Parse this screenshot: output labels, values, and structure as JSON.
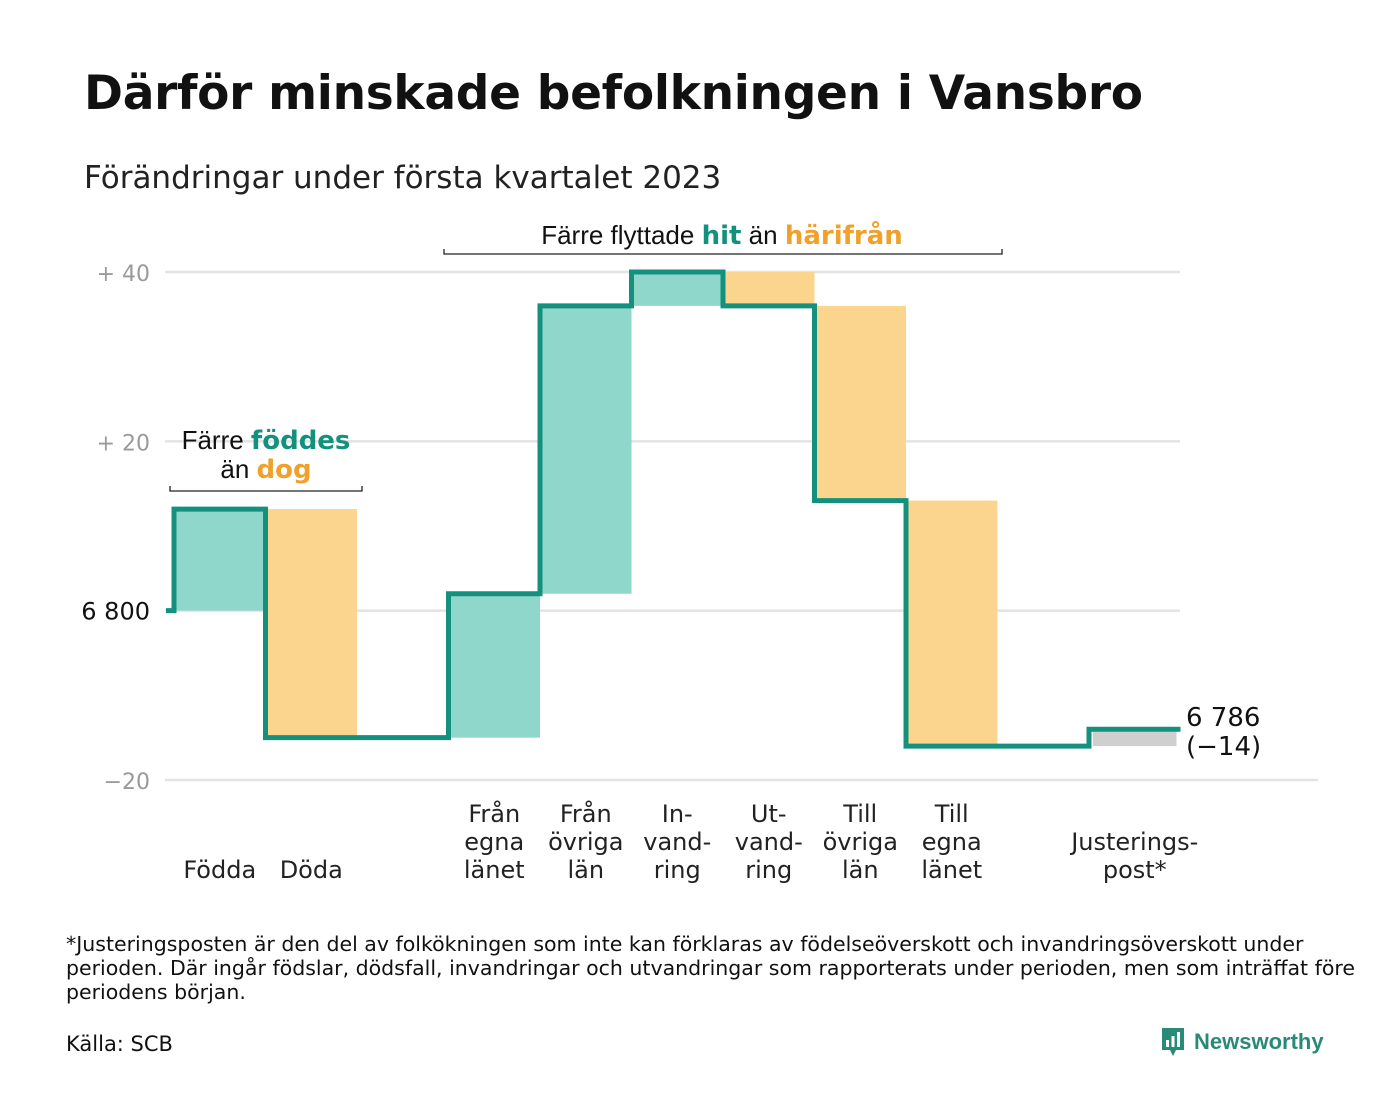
{
  "title": "Därför minskade befolkningen i Vansbro",
  "subtitle": "Förändringar under första kvartalet 2023",
  "footnote": "*Justeringsposten är den del av folkökningen som inte kan förklaras av födelseöverskott och invandringsöverskott under perioden. Där ingår födslar, dödsfall, invandringar och utvandringar som rapporterats under perioden, men som inträffat före periodens början.",
  "source": "Källa: SCB",
  "brand": "Newsworthy",
  "colors": {
    "inflow": "#8fd6cb",
    "outflow": "#fbd58d",
    "adjustment": "#cfcfcf",
    "line": "#13917e",
    "teal_text": "#13917e",
    "orange_text": "#f0a12b"
  },
  "chart_data": {
    "type": "waterfall",
    "start_value": 6800,
    "end_value": 6786,
    "end_label": "6 786",
    "end_change_label": "(−14)",
    "y_ticks": [
      {
        "offset": 40,
        "label": "+ 40"
      },
      {
        "offset": 20,
        "label": "+ 20"
      },
      {
        "offset": 0,
        "label": "6 800"
      },
      {
        "offset": -20,
        "label": "−20"
      }
    ],
    "ylim": [
      -20,
      40
    ],
    "steps": [
      {
        "label": [
          "Födda"
        ],
        "change": 12,
        "kind": "inflow"
      },
      {
        "label": [
          "Döda"
        ],
        "change": -27,
        "kind": "outflow"
      },
      {
        "label": [],
        "change": 0,
        "kind": "gap"
      },
      {
        "label": [
          "Från",
          "egna",
          "länet"
        ],
        "change": 17,
        "kind": "inflow"
      },
      {
        "label": [
          "Från",
          "övriga",
          "län"
        ],
        "change": 34,
        "kind": "inflow"
      },
      {
        "label": [
          "In-",
          "vand-",
          "ring"
        ],
        "change": 4,
        "kind": "inflow"
      },
      {
        "label": [
          "Ut-",
          "vand-",
          "ring"
        ],
        "change": -4,
        "kind": "outflow"
      },
      {
        "label": [
          "Till",
          "övriga",
          "län"
        ],
        "change": -23,
        "kind": "outflow"
      },
      {
        "label": [
          "Till",
          "egna",
          "länet"
        ],
        "change": -29,
        "kind": "outflow"
      },
      {
        "label": [],
        "change": 0,
        "kind": "gap"
      },
      {
        "label": [
          "Justerings-",
          "post*"
        ],
        "change": 2,
        "kind": "adjustment"
      }
    ],
    "annotations": [
      {
        "parts": [
          {
            "text": "Färre flyttade ",
            "style": "plain"
          },
          {
            "text": "hit",
            "style": "teal"
          },
          {
            "text": " än ",
            "style": "plain"
          },
          {
            "text": "härifrån",
            "style": "orange"
          }
        ]
      },
      {
        "parts": [
          {
            "text": "Färre ",
            "style": "plain"
          },
          {
            "text": "föddes",
            "style": "teal"
          }
        ],
        "parts2": [
          {
            "text": "än ",
            "style": "plain"
          },
          {
            "text": "dog",
            "style": "orange"
          }
        ]
      }
    ]
  }
}
